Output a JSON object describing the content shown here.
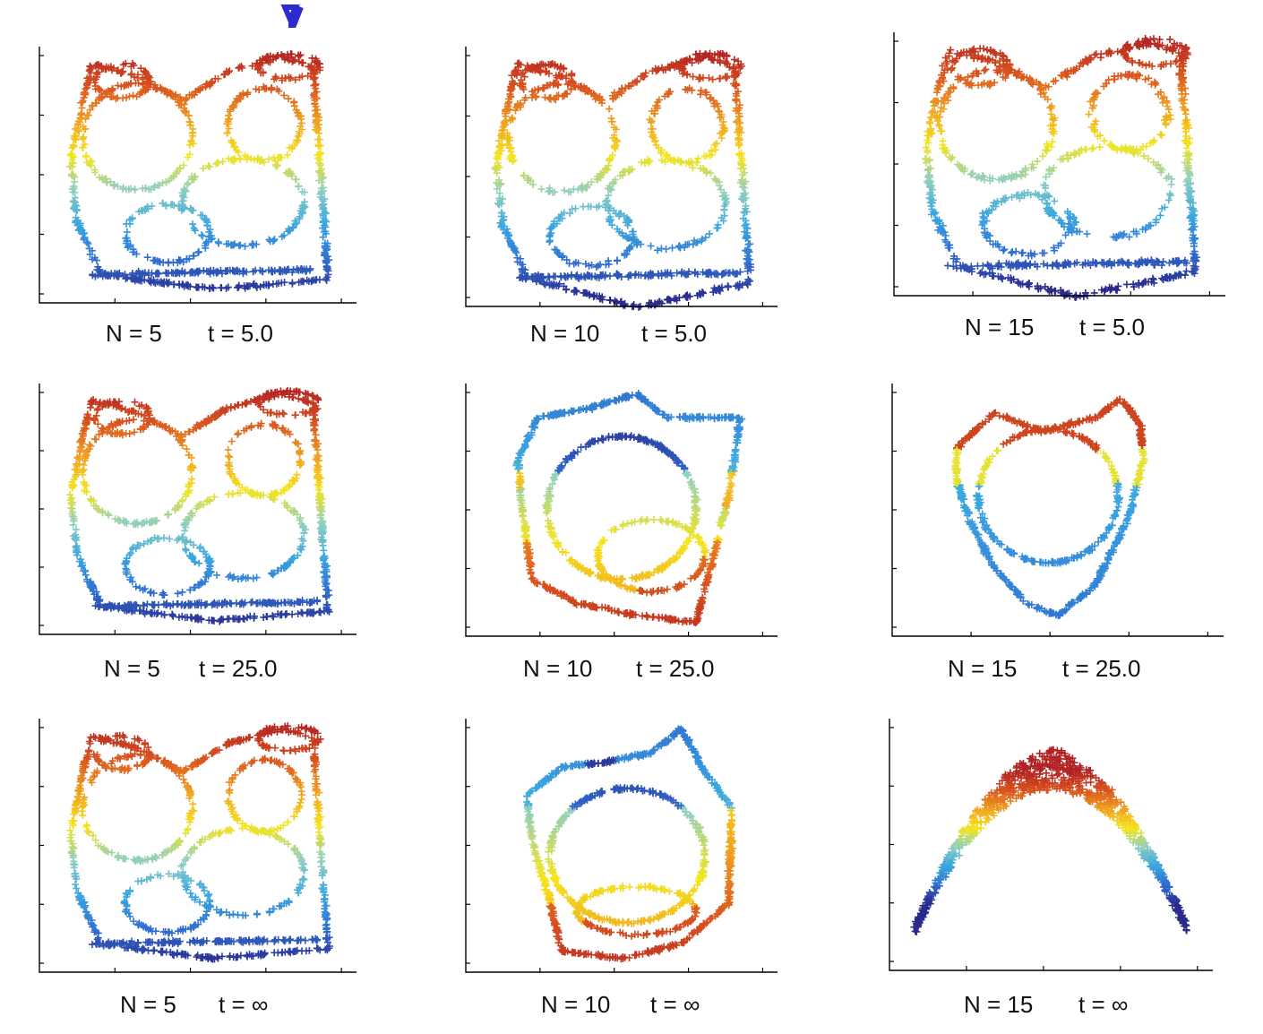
{
  "chart_data": [
    {
      "type": "scatter",
      "panel": "N5-t5",
      "n_label": "N = 5",
      "t_label": "t = 5.0",
      "shape": "tent",
      "wobble": 0.6
    },
    {
      "type": "scatter",
      "panel": "N10-t5",
      "n_label": "N = 10",
      "t_label": "t = 5.0",
      "shape": "skewtent",
      "wobble": 0.7
    },
    {
      "type": "scatter",
      "panel": "N15-t5",
      "n_label": "N = 15",
      "t_label": "t = 5.0",
      "shape": "skewtent",
      "wobble": 0.8
    },
    {
      "type": "scatter",
      "panel": "N5-t25",
      "n_label": "N = 5",
      "t_label": "t = 25.0",
      "shape": "tent",
      "wobble": 0.5
    },
    {
      "type": "scatter",
      "panel": "N10-t25",
      "n_label": "N = 10",
      "t_label": "t = 25.0",
      "shape": "blob",
      "wobble": 0.5
    },
    {
      "type": "scatter",
      "panel": "N15-t25",
      "n_label": "N = 15",
      "t_label": "t = 25.0",
      "shape": "heart",
      "wobble": 0.5
    },
    {
      "type": "scatter",
      "panel": "N5-tinf",
      "n_label": "N = 5",
      "t_label": "t = ∞",
      "shape": "tent",
      "wobble": 0.5
    },
    {
      "type": "scatter",
      "panel": "N10-tinf",
      "n_label": "N = 10",
      "t_label": "t = ∞",
      "shape": "blob2",
      "wobble": 0.5
    },
    {
      "type": "scatter",
      "panel": "N15-tinf",
      "n_label": "N = 15",
      "t_label": "t = ∞",
      "shape": "bowl",
      "wobble": 0.3
    }
  ],
  "colors": {
    "colormap": [
      "#2a2a8c",
      "#2f6fd1",
      "#3aa6e0",
      "#8fcfc0",
      "#f5e51b",
      "#f0a020",
      "#d9531e",
      "#b22222"
    ],
    "axis": "#000000",
    "caption": "#111111"
  }
}
